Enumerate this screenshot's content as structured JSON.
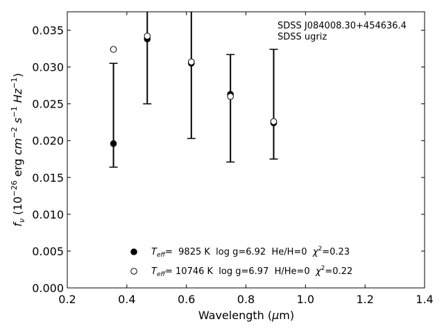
{
  "chart_data": {
    "type": "scatter",
    "xlabel": "Wavelength (μm)",
    "ylabel": "f_ν (10⁻²⁶ erg cm⁻² s⁻¹ Hz⁻¹)",
    "xlim": [
      0.2,
      1.4
    ],
    "ylim": [
      0.0,
      0.0375
    ],
    "xticks": [
      0.2,
      0.4,
      0.6,
      0.8,
      1.0,
      1.2,
      1.4
    ],
    "xtick_labels": [
      "0.2",
      "0.4",
      "0.6",
      "0.8",
      "1.0",
      "1.2",
      "1.4"
    ],
    "yticks": [
      0.0,
      0.005,
      0.01,
      0.015,
      0.02,
      0.025,
      0.03,
      0.035
    ],
    "ytick_labels": [
      "0.000",
      "0.005",
      "0.010",
      "0.015",
      "0.020",
      "0.025",
      "0.030",
      "0.035"
    ],
    "annotations": [
      "SDSS J084008.30+454636.4",
      "SDSS ugriz"
    ],
    "observed": {
      "x": [
        0.3551,
        0.4686,
        0.6166,
        0.748,
        0.8932
      ],
      "y": [
        0.0196,
        0.0338,
        0.0306,
        0.0262,
        0.0225
      ],
      "yerr_low": [
        0.0164,
        0.025,
        0.0203,
        0.0171,
        0.0175
      ],
      "yerr_high": [
        0.0305,
        0.0375,
        0.0375,
        0.0317,
        0.0324
      ]
    },
    "series": [
      {
        "name": "T_eff=  9825 K  log g=6.92  He/H=0  χ²=0.23",
        "marker": "filled-circle",
        "x": [
          0.3551,
          0.4686,
          0.6166,
          0.748,
          0.8932
        ],
        "y": [
          0.0196,
          0.0338,
          0.0305,
          0.0263,
          0.0224
        ]
      },
      {
        "name": "T_eff= 10746 K  log g=6.97  H/He=0  χ²=0.22",
        "marker": "open-circle",
        "x": [
          0.3551,
          0.4686,
          0.6166,
          0.748,
          0.8932
        ],
        "y": [
          0.0324,
          0.0342,
          0.0307,
          0.026,
          0.0226
        ]
      }
    ],
    "legend_position": "bottom-center",
    "grid": false
  },
  "legend": {
    "row1": {
      "t": "T",
      "sub": "eff",
      "body": "=  9825 K  log g=6.92  He/H=0  ",
      "chi": "χ",
      "sup": "2",
      "tail": "=0.23"
    },
    "row2": {
      "t": "T",
      "sub": "eff",
      "body": "= 10746 K  log g=6.97  H/He=0  ",
      "chi": "χ",
      "sup": "2",
      "tail": "=0.22"
    }
  },
  "xlabel_parts": {
    "pre": "Wavelength (",
    "mu": "μ",
    "post": "m)"
  },
  "ylabel_parts": {
    "f": "f",
    "nu": "ν",
    "a": " (10",
    "e1": "−26",
    "b": " erg ",
    "cm": "cm",
    "e2": "−2",
    "c": " ",
    "s": "s",
    "e3": "−1",
    "d": " ",
    "hz": "Hz",
    "e4": "−1",
    "e": ")"
  }
}
